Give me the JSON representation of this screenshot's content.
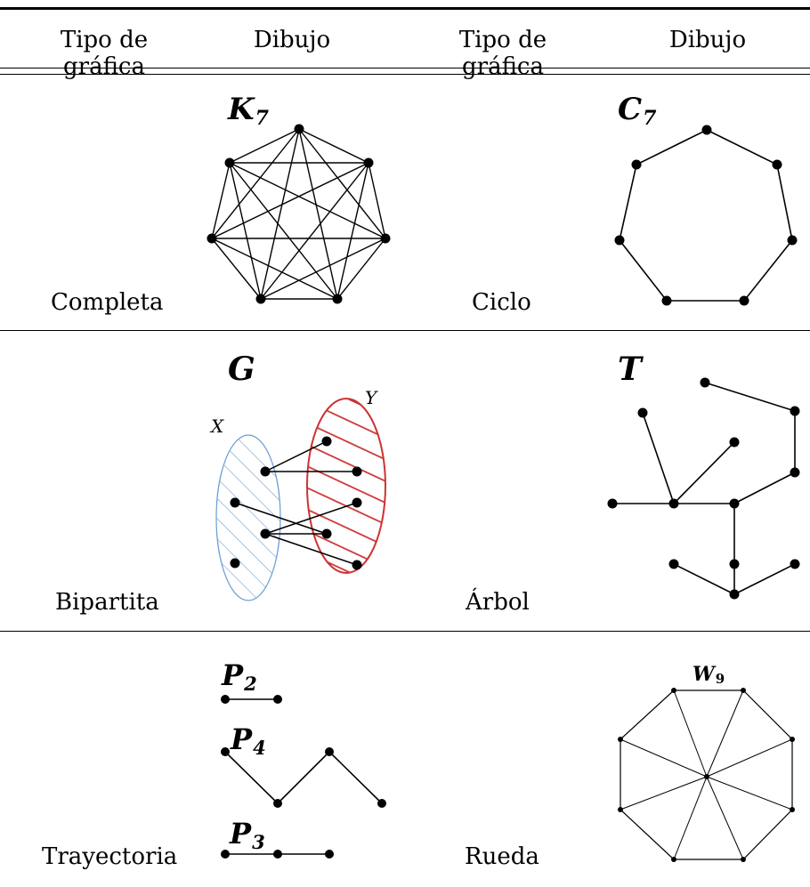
{
  "header": {
    "col1": "Tipo de gráfica",
    "col2": "Dibujo",
    "col3": "Tipo de gráfica",
    "col4": "Dibujo"
  },
  "rows": [
    {
      "left": {
        "type": "Completa",
        "graph_label": "K",
        "graph_sub": "7"
      },
      "right": {
        "type": "Ciclo",
        "graph_label": "C",
        "graph_sub": "7"
      }
    },
    {
      "left": {
        "type": "Bipartita",
        "graph_label": "G",
        "set_x": "X",
        "set_y": "Y"
      },
      "right": {
        "type": "Árbol",
        "graph_label": "T"
      }
    },
    {
      "left": {
        "type": "Trayectoria",
        "paths": [
          {
            "label": "P",
            "sub": "2"
          },
          {
            "label": "P",
            "sub": "4"
          },
          {
            "label": "P",
            "sub": "3"
          }
        ]
      },
      "right": {
        "type": "Rueda",
        "graph_label": "W",
        "graph_sub": "9"
      }
    }
  ],
  "colors": {
    "ink": "#000000",
    "set_x_hatch": "#6a9fd4",
    "set_y_hatch": "#cc3333"
  }
}
